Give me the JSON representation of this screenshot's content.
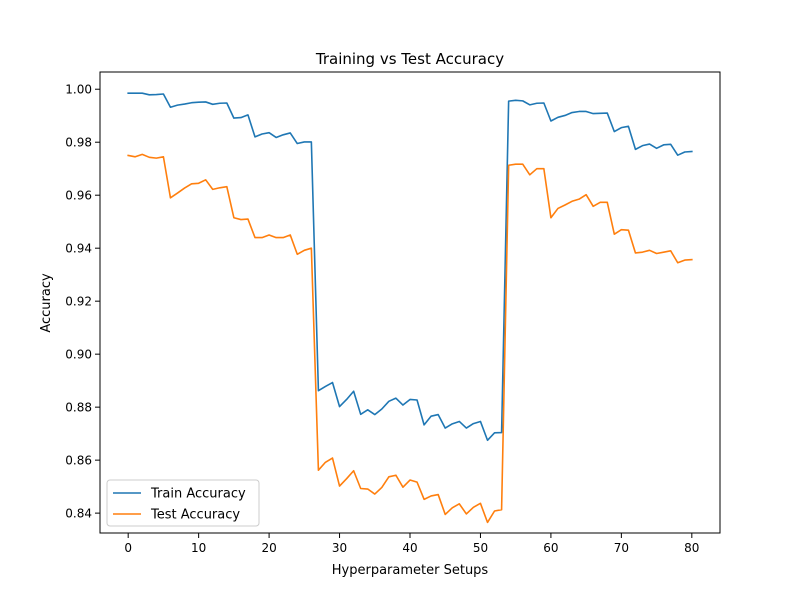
{
  "chart_data": {
    "type": "line",
    "title": "Training vs Test Accuracy",
    "xlabel": "Hyperparameter Setups",
    "ylabel": "Accuracy",
    "xlim": [
      -4,
      84
    ],
    "ylim": [
      0.8325,
      1.0065
    ],
    "xticks": [
      0,
      10,
      20,
      30,
      40,
      50,
      60,
      70,
      80
    ],
    "yticks": [
      0.84,
      0.86,
      0.88,
      0.9,
      0.92,
      0.94,
      0.96,
      0.98,
      1.0
    ],
    "grid": false,
    "legend_position": "lower-left",
    "x": [
      0,
      1,
      2,
      3,
      4,
      5,
      6,
      7,
      8,
      9,
      10,
      11,
      12,
      13,
      14,
      15,
      16,
      17,
      18,
      19,
      20,
      21,
      22,
      23,
      24,
      25,
      26,
      27,
      28,
      29,
      30,
      31,
      32,
      33,
      34,
      35,
      36,
      37,
      38,
      39,
      40,
      41,
      42,
      43,
      44,
      45,
      46,
      47,
      48,
      49,
      50,
      51,
      52,
      53,
      54,
      55,
      56,
      57,
      58,
      59,
      60,
      61,
      62,
      63,
      64,
      65,
      66,
      67,
      68,
      69,
      70,
      71,
      72,
      73,
      74,
      75,
      76,
      77,
      78,
      79,
      80
    ],
    "series": [
      {
        "name": "Train Accuracy",
        "color": "#1f77b4",
        "values": [
          0.9985,
          0.9985,
          0.9985,
          0.9979,
          0.998,
          0.9982,
          0.9932,
          0.994,
          0.9944,
          0.9949,
          0.9951,
          0.9952,
          0.9943,
          0.9947,
          0.9948,
          0.9891,
          0.9893,
          0.9903,
          0.982,
          0.9831,
          0.9836,
          0.9818,
          0.9828,
          0.9835,
          0.9795,
          0.9801,
          0.9801,
          0.8862,
          0.8878,
          0.8893,
          0.8802,
          0.8829,
          0.886,
          0.8773,
          0.879,
          0.8772,
          0.8793,
          0.8822,
          0.8834,
          0.8808,
          0.8829,
          0.8827,
          0.8733,
          0.8766,
          0.8772,
          0.8721,
          0.8737,
          0.8746,
          0.8721,
          0.8738,
          0.8746,
          0.8675,
          0.8703,
          0.8704,
          0.9955,
          0.9958,
          0.9956,
          0.9941,
          0.9947,
          0.9948,
          0.988,
          0.9894,
          0.9901,
          0.9912,
          0.9916,
          0.9916,
          0.9908,
          0.9909,
          0.991,
          0.984,
          0.9855,
          0.986,
          0.9773,
          0.9787,
          0.9793,
          0.9777,
          0.979,
          0.9792,
          0.9751,
          0.9763,
          0.9765
        ]
      },
      {
        "name": "Test Accuracy",
        "color": "#ff7f0e",
        "values": [
          0.975,
          0.9745,
          0.9754,
          0.9743,
          0.974,
          0.9745,
          0.959,
          0.9608,
          0.9627,
          0.9643,
          0.9645,
          0.9658,
          0.9622,
          0.9628,
          0.9632,
          0.9515,
          0.9508,
          0.951,
          0.944,
          0.944,
          0.945,
          0.944,
          0.944,
          0.945,
          0.9377,
          0.9392,
          0.94,
          0.8562,
          0.8592,
          0.8608,
          0.8502,
          0.853,
          0.856,
          0.8493,
          0.8491,
          0.8472,
          0.8497,
          0.8537,
          0.8543,
          0.8498,
          0.8525,
          0.8517,
          0.8452,
          0.8465,
          0.847,
          0.8395,
          0.842,
          0.8435,
          0.8397,
          0.8422,
          0.8437,
          0.8365,
          0.8408,
          0.8413,
          0.9713,
          0.9717,
          0.9717,
          0.9677,
          0.97,
          0.97,
          0.9515,
          0.955,
          0.9563,
          0.9577,
          0.9585,
          0.9602,
          0.9558,
          0.9573,
          0.9573,
          0.9453,
          0.947,
          0.9468,
          0.9382,
          0.9385,
          0.9392,
          0.938,
          0.9385,
          0.939,
          0.9345,
          0.9355,
          0.9357
        ]
      }
    ]
  }
}
